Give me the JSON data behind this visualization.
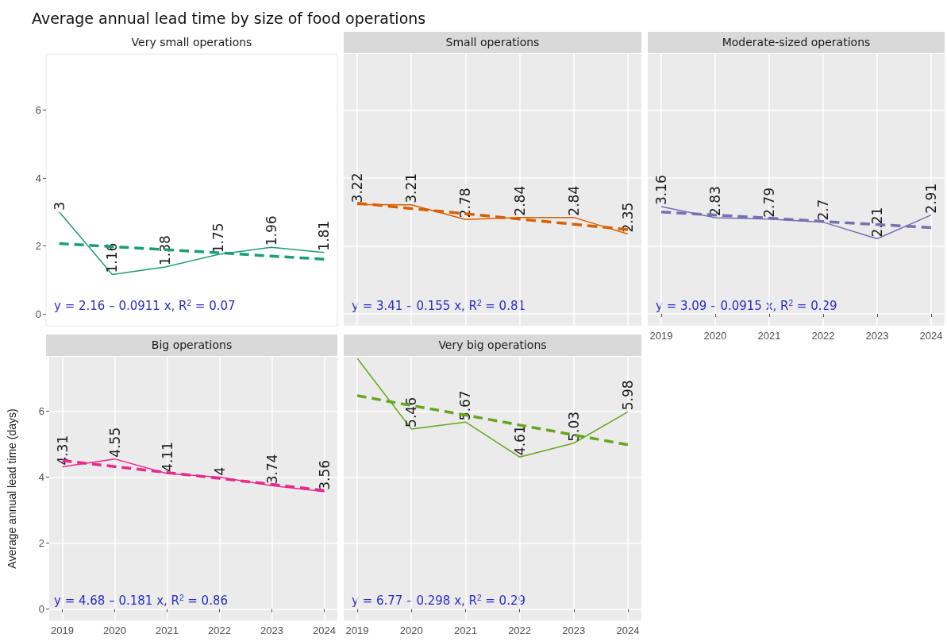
{
  "chart_data": [
    {
      "type": "line",
      "title": "Average annual lead time by size of food operations",
      "subtitle": "Very small operations",
      "x": [
        2019,
        2020,
        2021,
        2022,
        2023,
        2024
      ],
      "ylim": [
        -0.35,
        7.65
      ],
      "yticks": [
        0,
        2,
        4,
        6
      ],
      "grid": false,
      "tick_labels": "y",
      "marker": "none",
      "series": [
        {
          "color": "#1b9e77",
          "values": [
            3,
            1.16,
            1.38,
            1.75,
            1.96,
            1.81
          ],
          "value_labels": [
            "3",
            "1.16",
            "1.38",
            "1.75",
            "1.96",
            "1.81"
          ],
          "line_style": "solid"
        },
        {
          "color": "#1b9e77",
          "values": [
            2.07,
            1.98,
            1.89,
            1.8,
            1.7,
            1.61
          ],
          "line_style": "dashed"
        }
      ],
      "annotations": [
        "y = 2.16 – 0.0911 x, R$^{2}$ = 0.07"
      ]
    },
    {
      "type": "line",
      "title": "Small operations",
      "x": [
        2019,
        2020,
        2021,
        2022,
        2023,
        2024
      ],
      "xlim": [
        2018.75,
        2024.25
      ],
      "xticks": [
        2019,
        2020,
        2021,
        2022,
        2023,
        2024
      ],
      "ylim": [
        -0.35,
        7.65
      ],
      "yticks": [
        0,
        2,
        4,
        6
      ],
      "grid": true,
      "tick_labels": false,
      "marker": "none",
      "series": [
        {
          "color": "#d95f02",
          "values": [
            3.22,
            3.21,
            2.78,
            2.84,
            2.84,
            2.35
          ],
          "value_labels": [
            "3.22",
            "3.21",
            "2.78",
            "2.84",
            "2.84",
            "2.35"
          ],
          "line_style": "solid"
        },
        {
          "color": "#d95f02",
          "values": [
            3.26,
            3.1,
            2.95,
            2.79,
            2.64,
            2.48
          ],
          "line_style": "dashed"
        }
      ],
      "annotations": [
        "y = 3.41 – 0.155 x, R$^{2}$ = 0.81"
      ]
    },
    {
      "type": "line",
      "title": "Moderate-sized operations",
      "x": [
        2019,
        2020,
        2021,
        2022,
        2023,
        2024
      ],
      "xlim": [
        2018.75,
        2024.25
      ],
      "xticks": [
        2019,
        2020,
        2021,
        2022,
        2023,
        2024
      ],
      "ylim": [
        -0.35,
        7.65
      ],
      "yticks": [
        0,
        2,
        4,
        6
      ],
      "grid": true,
      "tick_labels": "x",
      "marker": "none",
      "series": [
        {
          "color": "#7570b3",
          "values": [
            3.16,
            2.83,
            2.79,
            2.7,
            2.21,
            2.91
          ],
          "value_labels": [
            "3.16",
            "2.83",
            "2.79",
            "2.7",
            "2.21",
            "2.91"
          ],
          "line_style": "solid"
        },
        {
          "color": "#7570b3",
          "values": [
            3.0,
            2.91,
            2.82,
            2.72,
            2.63,
            2.54
          ],
          "line_style": "dashed"
        }
      ],
      "annotations": [
        "y = 3.09 – 0.0915 x, R$^{2}$ = 0.29"
      ]
    },
    {
      "type": "line",
      "title": "Big operations",
      "ylabel": "Average annual lead time (days)",
      "x": [
        2019,
        2020,
        2021,
        2022,
        2023,
        2024
      ],
      "xlim": [
        2018.75,
        2024.25
      ],
      "xticks": [
        2019,
        2020,
        2021,
        2022,
        2023,
        2024
      ],
      "ylim": [
        -0.35,
        7.65
      ],
      "yticks": [
        0,
        2,
        4,
        6
      ],
      "grid": true,
      "marker": "none",
      "series": [
        {
          "color": "#e7298a",
          "values": [
            4.31,
            4.55,
            4.11,
            4,
            3.74,
            3.56
          ],
          "value_labels": [
            "4.31",
            "4.55",
            "4.11",
            "4",
            "3.74",
            "3.56"
          ],
          "line_style": "solid"
        },
        {
          "color": "#e7298a",
          "values": [
            4.5,
            4.32,
            4.14,
            3.96,
            3.78,
            3.59
          ],
          "line_style": "dashed"
        }
      ],
      "annotations": [
        "y = 4.68 – 0.181 x, R$^{2}$ = 0.86"
      ]
    },
    {
      "type": "line",
      "title": "Very big operations",
      "x": [
        2019,
        2020,
        2021,
        2022,
        2023,
        2024
      ],
      "xlim": [
        2018.75,
        2024.25
      ],
      "xticks": [
        2019,
        2020,
        2021,
        2022,
        2023,
        2024
      ],
      "ylim": [
        -0.35,
        7.65
      ],
      "yticks": [
        0,
        2,
        4,
        6
      ],
      "grid": true,
      "tick_labels": "x",
      "marker": "none",
      "series": [
        {
          "color": "#66a61e",
          "values": [
            7.6,
            5.46,
            5.67,
            4.61,
            5.03,
            5.98
          ],
          "value_labels": [
            null,
            "5.46",
            "5.67",
            "4.61",
            "5.03",
            "5.98"
          ],
          "line_style": "solid"
        },
        {
          "color": "#66a61e",
          "values": [
            6.47,
            6.17,
            5.88,
            5.58,
            5.28,
            4.98
          ],
          "line_style": "dashed"
        }
      ],
      "annotations": [
        "y = 6.77 – 0.298 x, R$^{2}$ = 0.29"
      ]
    }
  ]
}
